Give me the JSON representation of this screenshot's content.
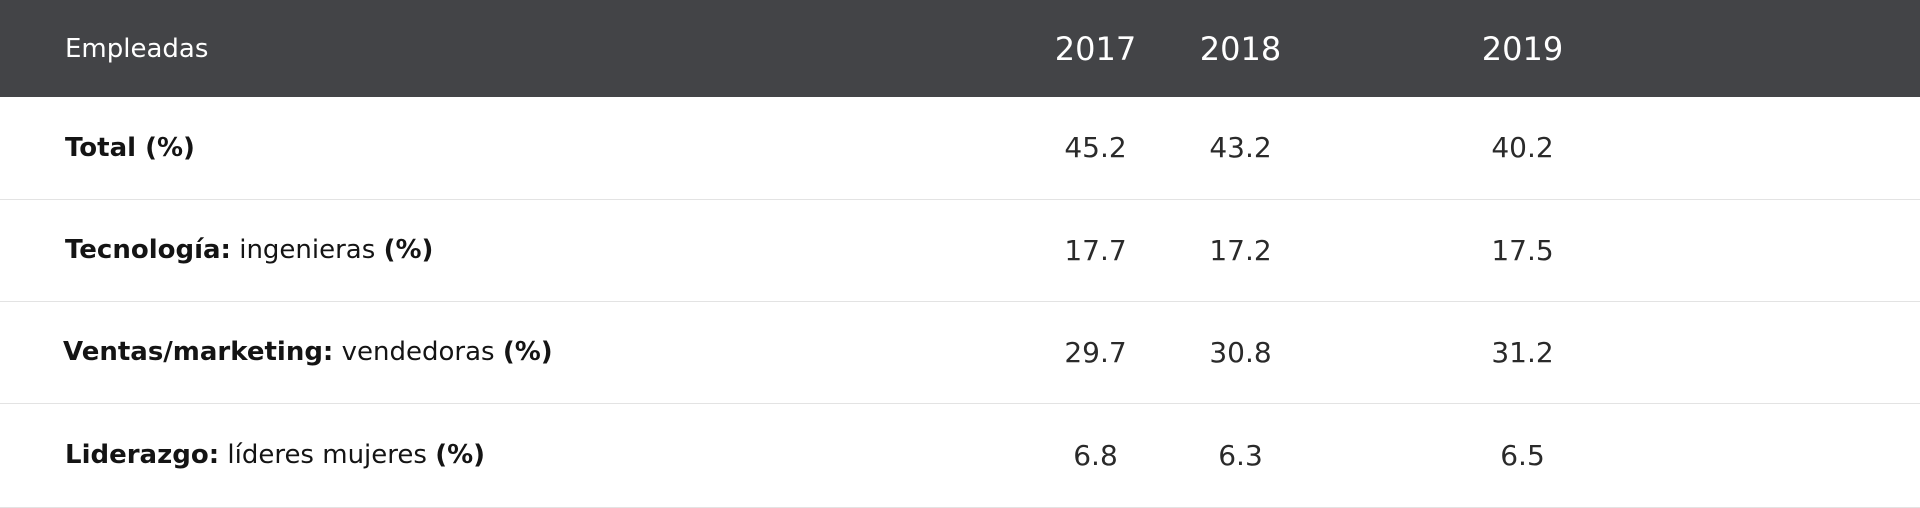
{
  "table": {
    "header": {
      "label": "Empleadas",
      "years": [
        "2017",
        "2018",
        "2019"
      ]
    },
    "rows": [
      {
        "label_bold": "Total (%)",
        "label_normal": "",
        "label_suffix": "",
        "values": [
          "45.2",
          "43.2",
          "40.2"
        ]
      },
      {
        "label_bold": "Tecnología:",
        "label_normal": " ingenieras ",
        "label_suffix": "(%)",
        "values": [
          "17.7",
          "17.2",
          "17.5"
        ]
      },
      {
        "label_bold": "Ventas/marketing:",
        "label_normal": " vendedoras ",
        "label_suffix": "(%)",
        "values": [
          "29.7",
          "30.8",
          "31.2"
        ]
      },
      {
        "label_bold": "Liderazgo:",
        "label_normal": " líderes mujeres ",
        "label_suffix": "(%)",
        "values": [
          "6.8",
          "6.3",
          "6.5"
        ]
      }
    ]
  },
  "colors": {
    "header_background": "#434447",
    "header_text": "#ffffff",
    "row_divider": "#e3e3e3",
    "body_text": "#1a1a1a"
  }
}
